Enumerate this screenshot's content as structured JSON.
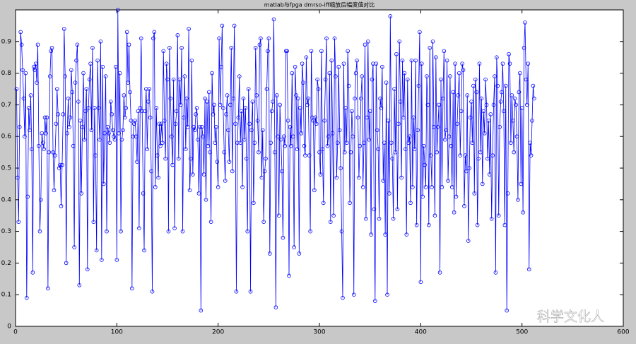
{
  "chart_data": {
    "type": "line",
    "title": "matlab与fpga dmrso-iff缩放后幅度值对比",
    "watermark": "科学文化人",
    "xlim": [
      0,
      600
    ],
    "xticks": [
      0,
      100,
      200,
      300,
      400,
      500,
      600
    ],
    "ylim": [
      0,
      1
    ],
    "yticks": [
      0,
      0.1,
      0.2,
      0.3,
      0.4,
      0.5,
      0.6,
      0.7,
      0.8,
      0.9
    ],
    "grid": false,
    "x": [
      1,
      2,
      3,
      4,
      5,
      6,
      7,
      8,
      9,
      10,
      11,
      12,
      13,
      14,
      15,
      16,
      17,
      18,
      19,
      20,
      21,
      22,
      23,
      24,
      25,
      26,
      27,
      28,
      29,
      30,
      31,
      32,
      33,
      34,
      35,
      36,
      37,
      38,
      39,
      40,
      41,
      42,
      43,
      44,
      45,
      46,
      47,
      48,
      49,
      50,
      51,
      52,
      53,
      54,
      55,
      56,
      57,
      58,
      59,
      60,
      61,
      62,
      63,
      64,
      65,
      66,
      67,
      68,
      69,
      70,
      71,
      72,
      73,
      74,
      75,
      76,
      77,
      78,
      79,
      80,
      81,
      82,
      83,
      84,
      85,
      86,
      87,
      88,
      89,
      90,
      91,
      92,
      93,
      94,
      95,
      96,
      97,
      98,
      99,
      100,
      101,
      102,
      103,
      104,
      105,
      106,
      107,
      108,
      109,
      110,
      111,
      112,
      113,
      114,
      115,
      116,
      117,
      118,
      119,
      120,
      121,
      122,
      123,
      124,
      125,
      126,
      127,
      128,
      129,
      130,
      131,
      132,
      133,
      134,
      135,
      136,
      137,
      138,
      139,
      140,
      141,
      142,
      143,
      144,
      145,
      146,
      147,
      148,
      149,
      150,
      151,
      152,
      153,
      154,
      155,
      156,
      157,
      158,
      159,
      160,
      161,
      162,
      163,
      164,
      165,
      166,
      167,
      168,
      169,
      170,
      171,
      172,
      173,
      174,
      175,
      176,
      177,
      178,
      179,
      180,
      181,
      182,
      183,
      184,
      185,
      186,
      187,
      188,
      189,
      190,
      191,
      192,
      193,
      194,
      195,
      196,
      197,
      198,
      199,
      200,
      201,
      202,
      203,
      204,
      205,
      206,
      207,
      208,
      209,
      210,
      211,
      212,
      213,
      214,
      215,
      216,
      217,
      218,
      219,
      220,
      221,
      222,
      223,
      224,
      225,
      226,
      227,
      228,
      229,
      230,
      231,
      232,
      233,
      234,
      235,
      236,
      237,
      238,
      239,
      240,
      241,
      242,
      243,
      244,
      245,
      246,
      247,
      248,
      249,
      250,
      251,
      252,
      253,
      254,
      255,
      256,
      257,
      258,
      259,
      260,
      261,
      262,
      263,
      264,
      265,
      266,
      267,
      268,
      269,
      270,
      271,
      272,
      273,
      274,
      275,
      276,
      277,
      278,
      279,
      280,
      281,
      282,
      283,
      284,
      285,
      286,
      287,
      288,
      289,
      290,
      291,
      292,
      293,
      294,
      295,
      296,
      297,
      298,
      299,
      300,
      301,
      302,
      303,
      304,
      305,
      306,
      307,
      308,
      309,
      310,
      311,
      312,
      313,
      314,
      315,
      316,
      317,
      318,
      319,
      320,
      321,
      322,
      323,
      324,
      325,
      326,
      327,
      328,
      329,
      330,
      331,
      332,
      333,
      334,
      335,
      336,
      337,
      338,
      339,
      340,
      341,
      342,
      343,
      344,
      345,
      346,
      347,
      348,
      349,
      350,
      351,
      352,
      353,
      354,
      355,
      356,
      357,
      358,
      359,
      360,
      361,
      362,
      363,
      364,
      365,
      366,
      367,
      368,
      369,
      370,
      371,
      372,
      373,
      374,
      375,
      376,
      377,
      378,
      379,
      380,
      381,
      382,
      383,
      384,
      385,
      386,
      387,
      388,
      389,
      390,
      391,
      392,
      393,
      394,
      395,
      396,
      397,
      398,
      399,
      400,
      401,
      402,
      403,
      404,
      405,
      406,
      407,
      408,
      409,
      410,
      411,
      412,
      413,
      414,
      415,
      416,
      417,
      418,
      419,
      420,
      421,
      422,
      423,
      424,
      425,
      426,
      427,
      428,
      429,
      430,
      431,
      432,
      433,
      434,
      435,
      436,
      437,
      438,
      439,
      440,
      441,
      442,
      443,
      444,
      445,
      446,
      447,
      448,
      449,
      450,
      451,
      452,
      453,
      454,
      455,
      456,
      457,
      458,
      459,
      460,
      461,
      462,
      463,
      464,
      465,
      466,
      467,
      468,
      469,
      470,
      471,
      472,
      473,
      474,
      475,
      476,
      477,
      478,
      479,
      480,
      481,
      482,
      483,
      484,
      485,
      486,
      487,
      488,
      489,
      490,
      491,
      492,
      493,
      494,
      495,
      496,
      497,
      498,
      499,
      500,
      501,
      502,
      503,
      504,
      505,
      506,
      507,
      508,
      509,
      510,
      511,
      512
    ],
    "series": [
      {
        "color": "#0000ff",
        "values": [
          0.75,
          0.47,
          0.33,
          0.63,
          0.93,
          0.89,
          0.81,
          0.72,
          0.6,
          0.8,
          0.09,
          0.41,
          0.69,
          0.62,
          0.73,
          0.56,
          0.17,
          0.82,
          0.81,
          0.83,
          0.77,
          0.89,
          0.57,
          0.3,
          0.4,
          0.61,
          0.58,
          0.56,
          0.66,
          0.61,
          0.66,
          0.12,
          0.55,
          0.79,
          0.87,
          0.88,
          0.55,
          0.43,
          0.54,
          0.64,
          0.75,
          0.67,
          0.5,
          0.51,
          0.38,
          0.51,
          0.67,
          0.94,
          0.79,
          0.2,
          0.61,
          0.72,
          0.63,
          0.66,
          0.81,
          0.74,
          0.57,
          0.25,
          0.77,
          0.84,
          0.89,
          0.71,
          0.13,
          0.65,
          0.42,
          0.63,
          0.8,
          0.59,
          0.68,
          0.75,
          0.18,
          0.69,
          0.78,
          0.83,
          0.62,
          0.88,
          0.33,
          0.69,
          0.54,
          0.24,
          0.84,
          0.69,
          0.59,
          0.9,
          0.21,
          0.82,
          0.45,
          0.61,
          0.79,
          0.3,
          0.63,
          0.61,
          0.58,
          0.71,
          0.67,
          0.62,
          0.6,
          0.59,
          0.82,
          0.21,
          1.0,
          0.61,
          0.8,
          0.3,
          0.59,
          0.62,
          0.73,
          0.66,
          0.69,
          0.93,
          0.77,
          0.89,
          0.74,
          0.65,
          0.12,
          0.6,
          0.64,
          0.65,
          0.6,
          0.52,
          0.68,
          0.31,
          0.69,
          0.91,
          0.68,
          0.42,
          0.24,
          0.68,
          0.75,
          0.56,
          0.71,
          0.75,
          0.66,
          0.49,
          0.11,
          0.91,
          0.93,
          0.44,
          0.69,
          0.54,
          0.47,
          0.64,
          0.57,
          0.64,
          0.58,
          0.87,
          0.65,
          0.53,
          0.83,
          0.78,
          0.3,
          0.88,
          0.72,
          0.6,
          0.51,
          0.78,
          0.31,
          0.64,
          0.68,
          0.92,
          0.53,
          0.78,
          0.7,
          0.88,
          0.3,
          0.66,
          0.79,
          0.56,
          0.72,
          0.63,
          0.94,
          0.43,
          0.53,
          0.84,
          0.48,
          0.63,
          0.62,
          0.67,
          0.69,
          0.59,
          0.42,
          0.63,
          0.05,
          0.63,
          0.6,
          0.48,
          0.72,
          0.4,
          0.71,
          0.57,
          0.74,
          0.55,
          0.33,
          0.8,
          0.67,
          0.7,
          0.58,
          0.63,
          0.52,
          0.44,
          0.91,
          0.7,
          0.82,
          0.95,
          0.69,
          0.55,
          0.46,
          0.67,
          0.73,
          0.62,
          0.52,
          0.7,
          0.88,
          0.49,
          0.72,
          0.95,
          0.64,
          0.11,
          0.58,
          0.66,
          0.79,
          0.58,
          0.68,
          0.44,
          0.72,
          0.59,
          0.69,
          0.53,
          0.3,
          0.75,
          0.64,
          0.11,
          0.62,
          0.71,
          0.39,
          0.58,
          0.88,
          0.73,
          0.65,
          0.55,
          0.89,
          0.91,
          0.47,
          0.62,
          0.33,
          0.49,
          0.53,
          0.75,
          0.87,
          0.91,
          0.23,
          0.58,
          0.68,
          0.71,
          0.97,
          0.55,
          0.06,
          0.73,
          0.6,
          0.35,
          0.7,
          0.59,
          0.49,
          0.28,
          0.6,
          0.57,
          0.87,
          0.87,
          0.65,
          0.16,
          0.63,
          0.57,
          0.8,
          0.6,
          0.25,
          0.82,
          0.73,
          0.56,
          0.72,
          0.23,
          0.69,
          0.61,
          0.83,
          0.77,
          0.57,
          0.54,
          0.85,
          0.7,
          0.72,
          0.54,
          0.3,
          0.87,
          0.66,
          0.65,
          0.43,
          0.66,
          0.64,
          0.78,
          0.75,
          0.55,
          0.48,
          0.87,
          0.56,
          0.39,
          0.65,
          0.78,
          0.91,
          0.57,
          0.6,
          0.8,
          0.33,
          0.84,
          0.61,
          0.35,
          0.91,
          0.79,
          0.47,
          0.58,
          0.82,
          0.62,
          0.5,
          0.3,
          0.09,
          0.83,
          0.55,
          0.69,
          0.58,
          0.87,
          0.76,
          0.39,
          0.55,
          0.68,
          0.6,
          0.1,
          0.72,
          0.8,
          0.84,
          0.66,
          0.47,
          0.57,
          0.72,
          0.79,
          0.44,
          0.58,
          0.89,
          0.34,
          0.66,
          0.9,
          0.59,
          0.68,
          0.29,
          0.78,
          0.83,
          0.37,
          0.08,
          0.83,
          0.62,
          0.56,
          0.34,
          0.72,
          0.69,
          0.82,
          0.46,
          0.58,
          0.29,
          0.77,
          0.1,
          0.65,
          0.42,
          0.98,
          0.58,
          0.53,
          0.34,
          0.75,
          0.55,
          0.86,
          0.37,
          0.64,
          0.9,
          0.71,
          0.47,
          0.84,
          0.66,
          0.8,
          0.56,
          0.29,
          0.78,
          0.58,
          0.6,
          0.39,
          0.84,
          0.44,
          0.66,
          0.56,
          0.84,
          0.32,
          0.62,
          0.76,
          0.93,
          0.14,
          0.83,
          0.41,
          0.57,
          0.51,
          0.44,
          0.79,
          0.7,
          0.32,
          0.88,
          0.54,
          0.44,
          0.9,
          0.63,
          0.35,
          0.85,
          0.55,
          0.63,
          0.7,
          0.17,
          0.78,
          0.44,
          0.72,
          0.87,
          0.59,
          0.62,
          0.84,
          0.46,
          0.6,
          0.79,
          0.57,
          0.44,
          0.74,
          0.36,
          0.83,
          0.41,
          0.64,
          0.73,
          0.8,
          0.54,
          0.68,
          0.83,
          0.81,
          0.38,
          0.54,
          0.49,
          0.73,
          0.27,
          0.5,
          0.66,
          0.71,
          0.58,
          0.76,
          0.42,
          0.78,
          0.74,
          0.32,
          0.53,
          0.83,
          0.55,
          0.72,
          0.45,
          0.68,
          0.61,
          0.78,
          0.7,
          0.53,
          0.65,
          0.48,
          0.67,
          0.34,
          0.54,
          0.7,
          0.79,
          0.17,
          0.85,
          0.76,
          0.35,
          0.63,
          0.71,
          0.74,
          0.83,
          0.68,
          0.32,
          0.76,
          0.05,
          0.42,
          0.86,
          0.83,
          0.58,
          0.73,
          0.65,
          0.55,
          0.72,
          0.7,
          0.6,
          0.4,
          0.74,
          0.8,
          0.45,
          0.69,
          0.36,
          0.88,
          0.96,
          0.78,
          0.7,
          0.83,
          0.18,
          0.58,
          0.54,
          0.65,
          0.76,
          0.72
        ]
      }
    ]
  }
}
